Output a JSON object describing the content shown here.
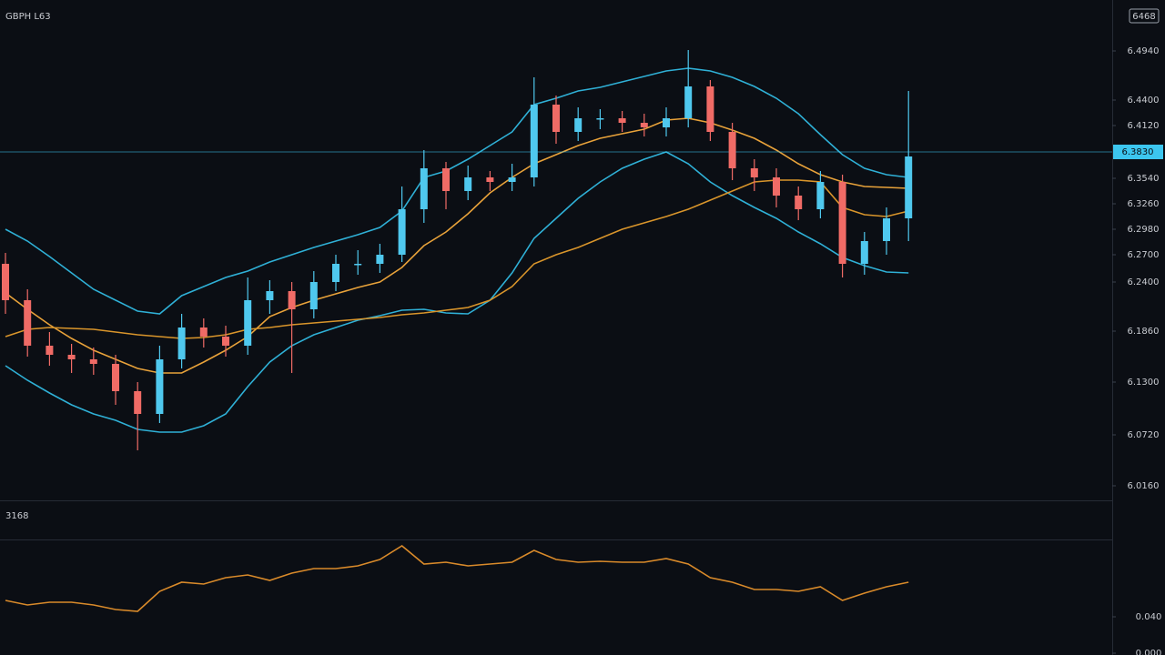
{
  "chart_data": {
    "type": "candlestick",
    "title": "GBPH L63",
    "toolbar_label": "6468",
    "up_color": "#4fc8ee",
    "down_color": "#f06b66",
    "ylim": [
      6.0,
      6.55
    ],
    "yticks": [
      {
        "value": 6.494,
        "label": "6.4940"
      },
      {
        "value": 6.44,
        "label": "6.4400"
      },
      {
        "value": 6.412,
        "label": "6.4120"
      },
      {
        "value": 6.354,
        "label": "6.3540"
      },
      {
        "value": 6.326,
        "label": "6.3260"
      },
      {
        "value": 6.298,
        "label": "6.2980"
      },
      {
        "value": 6.27,
        "label": "6.2700"
      },
      {
        "value": 6.24,
        "label": "6.2400"
      },
      {
        "value": 6.186,
        "label": "6.1860"
      },
      {
        "value": 6.13,
        "label": "6.1300"
      },
      {
        "value": 6.072,
        "label": "6.0720"
      },
      {
        "value": 6.016,
        "label": "6.0160"
      }
    ],
    "price_line": {
      "value": 6.383,
      "label": "6.3830",
      "color": "#3cc6ef"
    },
    "open": [
      6.26,
      6.22,
      6.17,
      6.16,
      6.155,
      6.15,
      6.12,
      6.095,
      6.155,
      6.19,
      6.18,
      6.17,
      6.22,
      6.23,
      6.21,
      6.24,
      6.26,
      6.26,
      6.27,
      6.32,
      6.365,
      6.34,
      6.355,
      6.35,
      6.355,
      6.435,
      6.405,
      6.42,
      6.42,
      6.415,
      6.41,
      6.42,
      6.455,
      6.405,
      6.365,
      6.355,
      6.335,
      6.32,
      6.35,
      6.26,
      6.285,
      6.31
    ],
    "high": [
      6.272,
      6.232,
      6.185,
      6.172,
      6.168,
      6.16,
      6.13,
      6.17,
      6.205,
      6.2,
      6.192,
      6.245,
      6.242,
      6.24,
      6.252,
      6.27,
      6.275,
      6.282,
      6.345,
      6.385,
      6.372,
      6.368,
      6.362,
      6.37,
      6.465,
      6.445,
      6.432,
      6.43,
      6.428,
      6.425,
      6.432,
      6.495,
      6.462,
      6.415,
      6.375,
      6.365,
      6.345,
      6.362,
      6.358,
      6.295,
      6.322,
      6.45
    ],
    "low": [
      6.205,
      6.158,
      6.148,
      6.14,
      6.138,
      6.105,
      6.055,
      6.085,
      6.145,
      6.168,
      6.158,
      6.16,
      6.205,
      6.14,
      6.2,
      6.23,
      6.248,
      6.25,
      6.262,
      6.305,
      6.32,
      6.33,
      6.34,
      6.34,
      6.345,
      6.392,
      6.395,
      6.408,
      6.405,
      6.4,
      6.4,
      6.41,
      6.395,
      6.352,
      6.34,
      6.322,
      6.308,
      6.31,
      6.245,
      6.248,
      6.27,
      6.285
    ],
    "close": [
      6.22,
      6.17,
      6.16,
      6.155,
      6.15,
      6.12,
      6.095,
      6.155,
      6.19,
      6.18,
      6.17,
      6.22,
      6.23,
      6.21,
      6.24,
      6.26,
      6.26,
      6.27,
      6.32,
      6.365,
      6.34,
      6.355,
      6.35,
      6.355,
      6.435,
      6.405,
      6.42,
      6.42,
      6.415,
      6.41,
      6.42,
      6.455,
      6.405,
      6.365,
      6.355,
      6.335,
      6.32,
      6.35,
      6.26,
      6.285,
      6.31,
      6.378
    ],
    "lines": [
      {
        "color": "#2fb0d6",
        "values": [
          6.298,
          6.285,
          6.268,
          6.25,
          6.232,
          6.22,
          6.208,
          6.205,
          6.225,
          6.235,
          6.245,
          6.252,
          6.262,
          6.27,
          6.278,
          6.285,
          6.292,
          6.3,
          6.318,
          6.355,
          6.362,
          6.375,
          6.39,
          6.405,
          6.435,
          6.442,
          6.45,
          6.454,
          6.46,
          6.466,
          6.472,
          6.475,
          6.472,
          6.465,
          6.455,
          6.442,
          6.425,
          6.402,
          6.38,
          6.365,
          6.358,
          6.355
        ]
      },
      {
        "color": "#e8a23a",
        "values": [
          6.228,
          6.21,
          6.193,
          6.178,
          6.165,
          6.155,
          6.145,
          6.14,
          6.14,
          6.152,
          6.165,
          6.18,
          6.202,
          6.212,
          6.22,
          6.227,
          6.234,
          6.24,
          6.256,
          6.28,
          6.295,
          6.315,
          6.338,
          6.355,
          6.37,
          6.38,
          6.39,
          6.398,
          6.403,
          6.408,
          6.418,
          6.42,
          6.415,
          6.407,
          6.398,
          6.385,
          6.37,
          6.358,
          6.35,
          6.345,
          6.344,
          6.343
        ]
      },
      {
        "color": "#2fb0d6",
        "values": [
          6.148,
          6.132,
          6.118,
          6.105,
          6.095,
          6.088,
          6.078,
          6.075,
          6.075,
          6.082,
          6.095,
          6.125,
          6.152,
          6.17,
          6.182,
          6.19,
          6.198,
          6.203,
          6.209,
          6.21,
          6.206,
          6.205,
          6.22,
          6.25,
          6.288,
          6.31,
          6.332,
          6.35,
          6.365,
          6.375,
          6.383,
          6.37,
          6.35,
          6.335,
          6.322,
          6.31,
          6.295,
          6.282,
          6.267,
          6.258,
          6.251,
          6.25
        ]
      },
      {
        "color": "#d9952b",
        "values": [
          6.18,
          6.188,
          6.19,
          6.189,
          6.188,
          6.185,
          6.182,
          6.18,
          6.178,
          6.179,
          6.182,
          6.188,
          6.19,
          6.193,
          6.195,
          6.197,
          6.199,
          6.201,
          6.204,
          6.206,
          6.209,
          6.212,
          6.22,
          6.235,
          6.26,
          6.27,
          6.278,
          6.288,
          6.298,
          6.305,
          6.312,
          6.32,
          6.33,
          6.34,
          6.35,
          6.352,
          6.352,
          6.35,
          6.322,
          6.314,
          6.312,
          6.318
        ]
      }
    ],
    "indicator": {
      "label": "3168",
      "color": "#d98a2a",
      "ylim": [
        -0.002,
        0.128
      ],
      "yticks": [
        {
          "value": 0.04,
          "label": "0.040"
        },
        {
          "value": 0.0,
          "label": "0.000"
        }
      ],
      "values": [
        0.058,
        0.053,
        0.056,
        0.056,
        0.053,
        0.048,
        0.046,
        0.068,
        0.078,
        0.076,
        0.083,
        0.086,
        0.08,
        0.088,
        0.093,
        0.093,
        0.096,
        0.103,
        0.118,
        0.098,
        0.1,
        0.096,
        0.098,
        0.1,
        0.113,
        0.103,
        0.1,
        0.101,
        0.1,
        0.1,
        0.104,
        0.098,
        0.083,
        0.078,
        0.07,
        0.07,
        0.068,
        0.073,
        0.058,
        0.066,
        0.073,
        0.078
      ]
    }
  }
}
